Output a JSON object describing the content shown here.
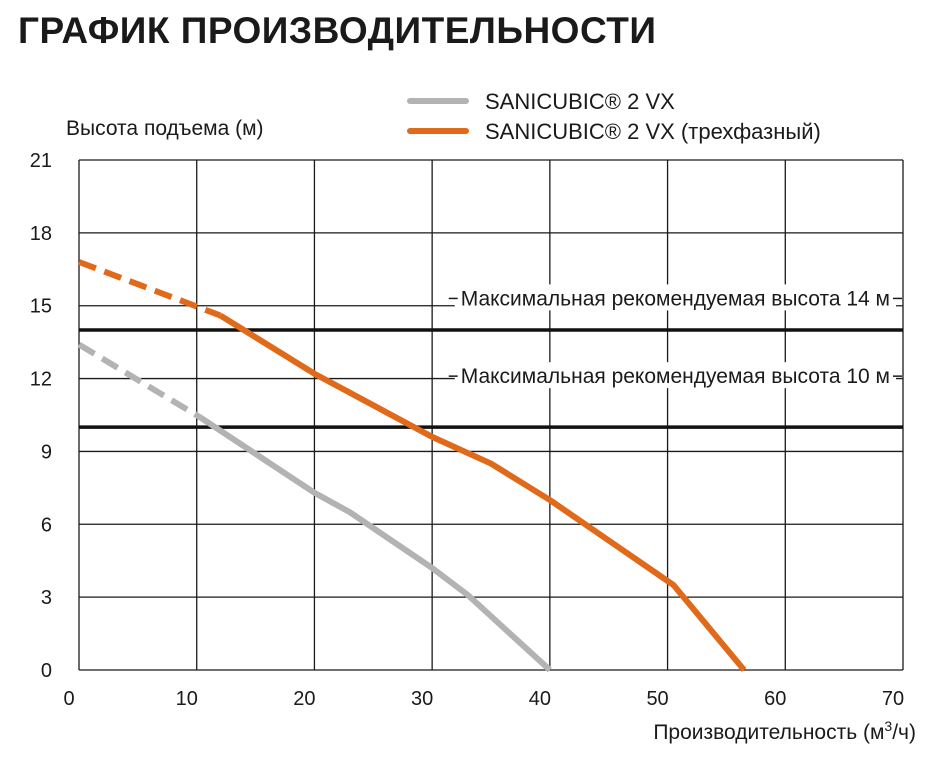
{
  "chart_data": {
    "type": "line",
    "title": "ГРАФИК ПРОИЗВОДИТЕЛЬНОСТИ",
    "xlabel": "Производительность (м",
    "xlabel_sup": "3",
    "xlabel_tail": "/ч)",
    "ylabel": "Высота подъема (м)",
    "xlim": [
      0,
      70
    ],
    "ylim": [
      0,
      21
    ],
    "xticks": [
      0,
      10,
      20,
      30,
      40,
      50,
      60,
      70
    ],
    "yticks": [
      0,
      3,
      6,
      9,
      12,
      15,
      18,
      21
    ],
    "grid": true,
    "legend_position": "top-right",
    "series": [
      {
        "name": "SANICUBIC® 2 VX",
        "color": "#b3b3b3",
        "dashed_points": [
          [
            0,
            13.4
          ],
          [
            10.3,
            10.4
          ]
        ],
        "points": [
          [
            10.3,
            10.4
          ],
          [
            20,
            7.3
          ],
          [
            23,
            6.5
          ],
          [
            30,
            4.2
          ],
          [
            33,
            3.1
          ],
          [
            40,
            0
          ]
        ]
      },
      {
        "name": "SANICUBIC® 2 VX (трехфазный)",
        "color": "#e06a1a",
        "dashed_points": [
          [
            0,
            16.8
          ],
          [
            12,
            14.6
          ]
        ],
        "points": [
          [
            12,
            14.6
          ],
          [
            20,
            12.2
          ],
          [
            30,
            9.6
          ],
          [
            35,
            8.5
          ],
          [
            40,
            7.0
          ],
          [
            50.5,
            3.5
          ],
          [
            56.5,
            0
          ]
        ]
      }
    ],
    "reference_lines": [
      {
        "y": 14,
        "label": "Максимальная рекомендуемая высота 14 м",
        "label_y": 15.3
      },
      {
        "y": 10,
        "label": "Максимальная рекомендуемая высота 10 м",
        "label_y": 12.1
      }
    ]
  }
}
